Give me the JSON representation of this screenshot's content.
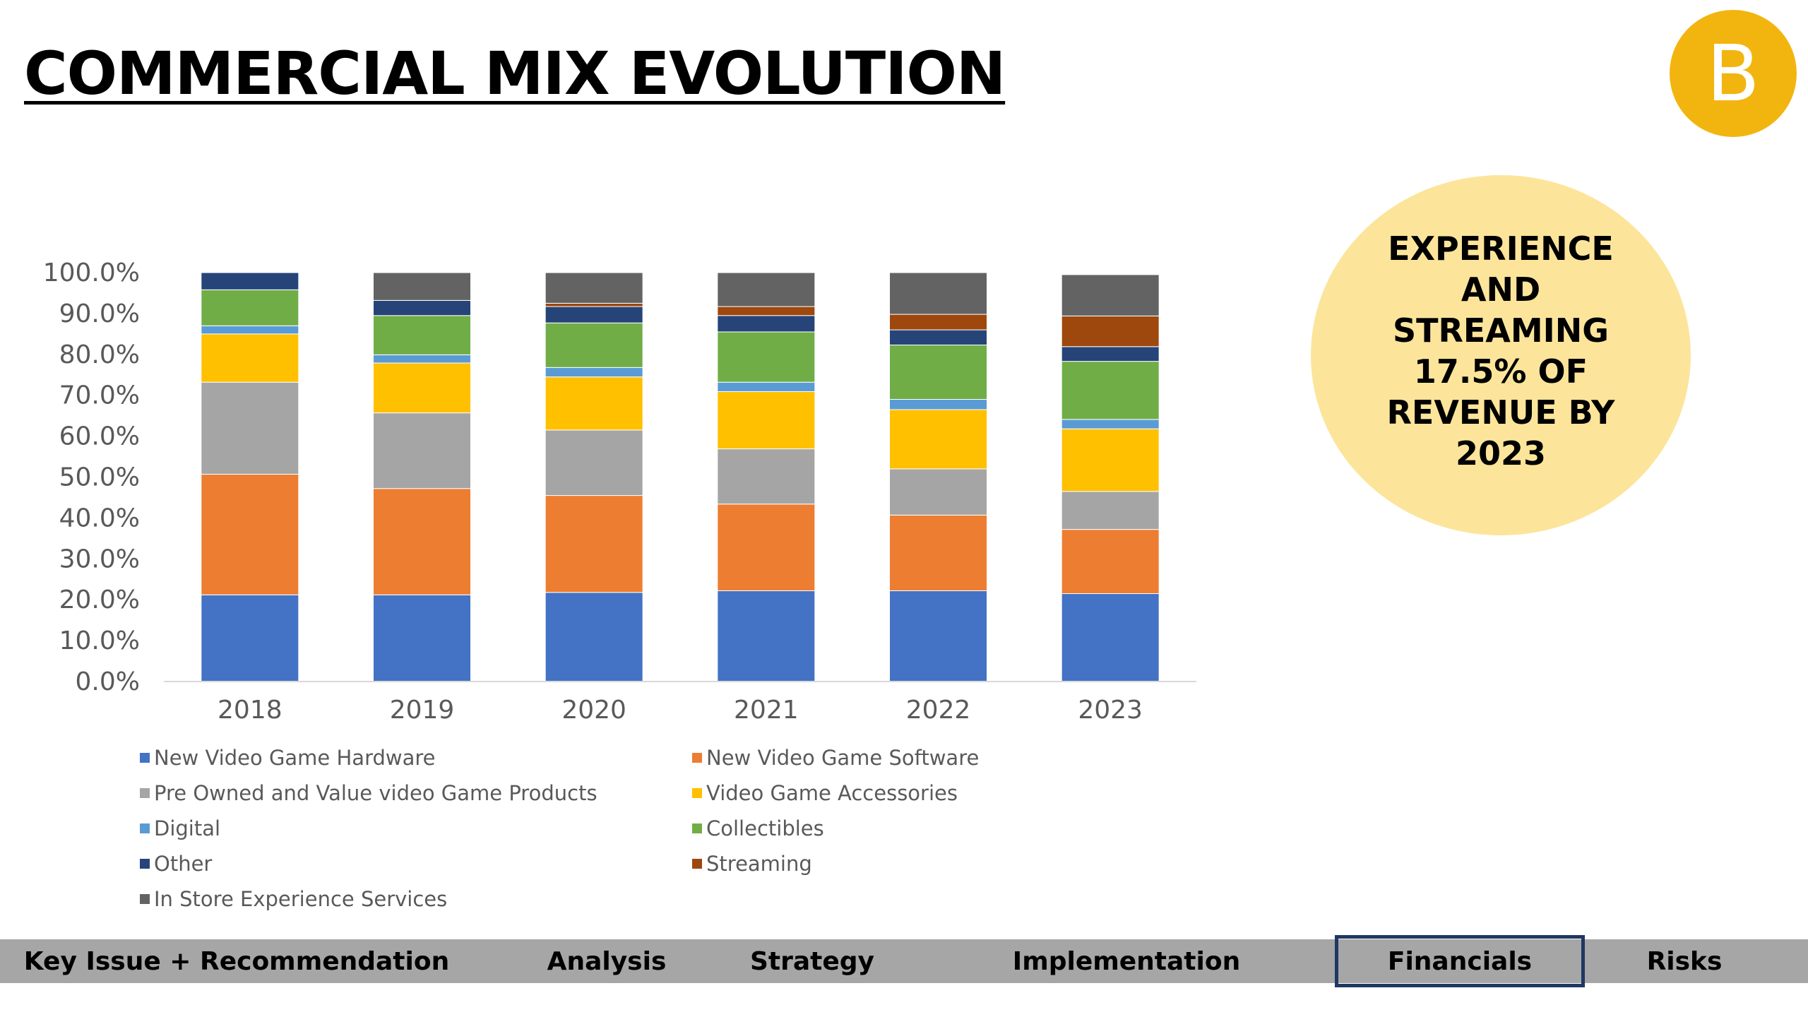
{
  "slide": {
    "title": "COMMERCIAL MIX EVOLUTION",
    "logo_letter": "B",
    "callout": "EXPERIENCE AND STREAMING 17.5% OF REVENUE BY 2023"
  },
  "nav": {
    "items": [
      {
        "label": "Key Issue + Recommendation",
        "active": false
      },
      {
        "label": "Analysis",
        "active": false
      },
      {
        "label": "Strategy",
        "active": false
      },
      {
        "label": "Implementation",
        "active": false
      },
      {
        "label": "Financials",
        "active": true
      },
      {
        "label": "Risks",
        "active": false
      }
    ]
  },
  "colors": {
    "logo": "#F2B50F",
    "callout_bg": "#FCE59A",
    "nav_bg": "#A6A6A6",
    "nav_active_border": "#1F3864"
  },
  "chart_data": {
    "type": "bar",
    "stacked": true,
    "title": "",
    "xlabel": "",
    "ylabel": "",
    "categories": [
      "2018",
      "2019",
      "2020",
      "2021",
      "2022",
      "2023"
    ],
    "yticks": [
      "0.0%",
      "10.0%",
      "20.0%",
      "30.0%",
      "40.0%",
      "50.0%",
      "60.0%",
      "70.0%",
      "80.0%",
      "90.0%",
      "100.0%"
    ],
    "ylim": [
      0,
      100
    ],
    "grid": false,
    "legend_position": "bottom",
    "series": [
      {
        "name": "New Video Game Hardware",
        "color": "#4472C4",
        "values": [
          21.2,
          21.2,
          21.8,
          22.2,
          22.2,
          21.5
        ]
      },
      {
        "name": "New Video Game Software",
        "color": "#ED7D31",
        "values": [
          29.5,
          26.0,
          23.7,
          21.2,
          18.5,
          15.7
        ]
      },
      {
        "name": "Pre Owned and Value video Game Products",
        "color": "#A5A5A5",
        "values": [
          22.5,
          18.5,
          16.0,
          13.5,
          11.3,
          9.3
        ]
      },
      {
        "name": "Video Game Accessories",
        "color": "#FFC000",
        "values": [
          11.8,
          12.2,
          13.0,
          14.0,
          14.5,
          15.3
        ]
      },
      {
        "name": "Digital",
        "color": "#5B9BD5",
        "values": [
          2.0,
          2.0,
          2.3,
          2.3,
          2.5,
          2.3
        ]
      },
      {
        "name": "Collectibles",
        "color": "#70AD47",
        "values": [
          8.8,
          9.6,
          10.9,
          12.3,
          13.3,
          14.2
        ]
      },
      {
        "name": "Other",
        "color": "#264478",
        "values": [
          4.2,
          3.7,
          4.0,
          4.0,
          3.7,
          3.6
        ]
      },
      {
        "name": "Streaming",
        "color": "#9E480E",
        "values": [
          0.0,
          0.0,
          0.8,
          2.2,
          3.8,
          7.5
        ]
      },
      {
        "name": "In Store Experience Services",
        "color": "#636363",
        "values": [
          0.0,
          6.8,
          7.5,
          8.3,
          10.2,
          10.1
        ]
      }
    ]
  }
}
